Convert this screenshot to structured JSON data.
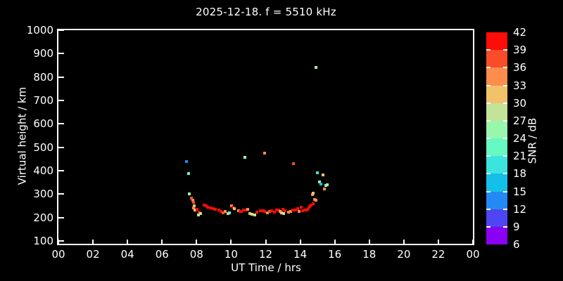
{
  "title": "2025-12-18. f = 5510 kHz",
  "chart_data": {
    "type": "scatter",
    "title": "2025-12-18. f = 5510 kHz",
    "xlabel": "UT Time / hrs",
    "ylabel": "Virtual height / km",
    "background_color": "#000000",
    "axis_color": "#ffffff",
    "xlim": [
      0,
      24
    ],
    "ylim": [
      100,
      1000
    ],
    "x_tick_hours": [
      0,
      2,
      4,
      6,
      8,
      10,
      12,
      14,
      16,
      18,
      20,
      22,
      24
    ],
    "x_tick_labels": [
      "00",
      "02",
      "04",
      "06",
      "08",
      "10",
      "12",
      "14",
      "16",
      "18",
      "20",
      "22",
      "00"
    ],
    "y_ticks": [
      100,
      200,
      300,
      400,
      500,
      600,
      700,
      800,
      900,
      1000
    ],
    "colorbar": {
      "label": "SNR / dB",
      "ticks": [
        6,
        9,
        12,
        15,
        18,
        21,
        24,
        27,
        30,
        33,
        36,
        39,
        42
      ],
      "segment_colors_bottom_to_top": [
        "#8a00f5",
        "#4e45f3",
        "#2589f5",
        "#14c0ea",
        "#3be5de",
        "#66f9c2",
        "#98f7ab",
        "#c2e398",
        "#f2c26b",
        "#fc8d4c",
        "#fb4c2a",
        "#fd0d08"
      ]
    },
    "points_columns": [
      "ut_hour",
      "virtual_height_km",
      "snr_db"
    ],
    "points": [
      [
        7.43,
        439,
        13
      ],
      [
        7.52,
        389,
        22
      ],
      [
        7.58,
        300,
        25
      ],
      [
        7.7,
        282,
        37
      ],
      [
        7.78,
        273,
        34
      ],
      [
        7.82,
        264,
        37
      ],
      [
        7.86,
        250,
        31
      ],
      [
        7.82,
        241,
        34
      ],
      [
        7.9,
        232,
        31
      ],
      [
        8.03,
        235,
        40
      ],
      [
        8.15,
        223,
        40
      ],
      [
        8.11,
        211,
        28
      ],
      [
        8.23,
        217,
        28
      ],
      [
        8.43,
        252,
        40
      ],
      [
        8.56,
        250,
        40
      ],
      [
        8.64,
        244,
        40
      ],
      [
        8.8,
        241,
        40
      ],
      [
        8.96,
        238,
        40
      ],
      [
        9.09,
        235,
        40
      ],
      [
        9.29,
        232,
        40
      ],
      [
        9.41,
        226,
        40
      ],
      [
        9.54,
        220,
        37
      ],
      [
        9.66,
        226,
        34
      ],
      [
        9.82,
        217,
        31
      ],
      [
        9.9,
        220,
        22
      ],
      [
        10.02,
        250,
        34
      ],
      [
        10.11,
        244,
        40
      ],
      [
        10.19,
        238,
        31
      ],
      [
        10.43,
        229,
        34
      ],
      [
        10.52,
        226,
        40
      ],
      [
        10.6,
        226,
        40
      ],
      [
        10.72,
        232,
        40
      ],
      [
        10.84,
        232,
        40
      ],
      [
        10.8,
        456,
        25
      ],
      [
        10.96,
        235,
        34
      ],
      [
        11.08,
        217,
        31
      ],
      [
        11.21,
        214,
        28
      ],
      [
        11.37,
        211,
        28
      ],
      [
        11.49,
        223,
        40
      ],
      [
        11.7,
        229,
        40
      ],
      [
        11.78,
        229,
        40
      ],
      [
        11.86,
        229,
        40
      ],
      [
        11.94,
        226,
        40
      ],
      [
        11.94,
        474,
        34
      ],
      [
        12.11,
        220,
        34
      ],
      [
        12.23,
        226,
        37
      ],
      [
        12.35,
        229,
        40
      ],
      [
        12.51,
        223,
        40
      ],
      [
        12.64,
        232,
        40
      ],
      [
        12.76,
        232,
        40
      ],
      [
        12.84,
        226,
        34
      ],
      [
        12.92,
        220,
        31
      ],
      [
        13.0,
        235,
        40
      ],
      [
        13.04,
        217,
        28
      ],
      [
        13.13,
        229,
        40
      ],
      [
        13.33,
        223,
        34
      ],
      [
        13.45,
        226,
        34
      ],
      [
        13.57,
        232,
        40
      ],
      [
        13.62,
        429,
        37
      ],
      [
        13.74,
        232,
        40
      ],
      [
        13.86,
        238,
        40
      ],
      [
        13.94,
        226,
        34
      ],
      [
        14.06,
        244,
        40
      ],
      [
        14.14,
        229,
        40
      ],
      [
        14.27,
        232,
        40
      ],
      [
        14.39,
        232,
        40
      ],
      [
        14.47,
        238,
        40
      ],
      [
        14.55,
        247,
        40
      ],
      [
        14.64,
        252,
        40
      ],
      [
        14.76,
        258,
        40
      ],
      [
        14.72,
        297,
        34
      ],
      [
        14.76,
        303,
        31
      ],
      [
        14.84,
        276,
        34
      ],
      [
        14.92,
        273,
        34
      ],
      [
        14.92,
        842,
        25
      ],
      [
        15.0,
        391,
        19
      ],
      [
        15.13,
        351,
        25
      ],
      [
        15.21,
        342,
        16
      ],
      [
        15.33,
        382,
        31
      ],
      [
        15.41,
        321,
        34
      ],
      [
        15.49,
        336,
        25
      ],
      [
        15.57,
        339,
        25
      ]
    ]
  }
}
